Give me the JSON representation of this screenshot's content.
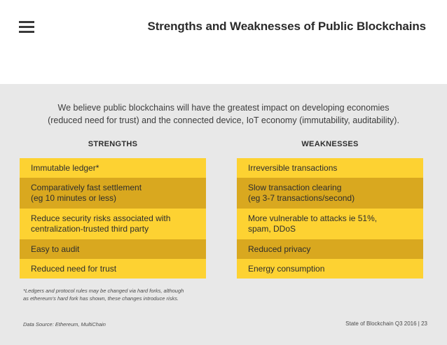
{
  "header": {
    "title": "Strengths and Weaknesses of Public Blockchains",
    "menu_icon": "hamburger-menu-icon"
  },
  "intro": {
    "line1": "We believe public blockchains will have the greatest impact on developing economies",
    "line2": "(reduced need for trust) and the connected device, IoT economy (immutability, auditability)."
  },
  "strengths": {
    "heading": "STRENGTHS",
    "items": [
      "Immutable ledger*",
      "Comparatively fast settlement\n(eg 10 minutes or less)",
      "Reduce security risks associated with\ncentralization-trusted third party",
      "Easy to audit",
      "Reduced need for trust"
    ]
  },
  "weaknesses": {
    "heading": "WEAKNESSES",
    "items": [
      "Irreversible transactions",
      "Slow transaction clearing\n(eg 3-7 transactions/second)",
      "More vulnerable to attacks ie 51%,\nspam, DDoS",
      "Reduced privacy",
      "Energy consumption"
    ]
  },
  "footer": {
    "footnote_line1": "*Ledgers and protocol rules may be changed via hard forks, although",
    "footnote_line2": "as ethereum's hard fork has shown, these changes introduce risks.",
    "source": "Data Source: Ethereum, MultiChain",
    "page_info": "State of Blockchain Q3 2016  |  23"
  },
  "colors": {
    "row_light": "#fdd232",
    "row_dark": "#d9a81f",
    "panel_bg": "#e8e8e8"
  }
}
